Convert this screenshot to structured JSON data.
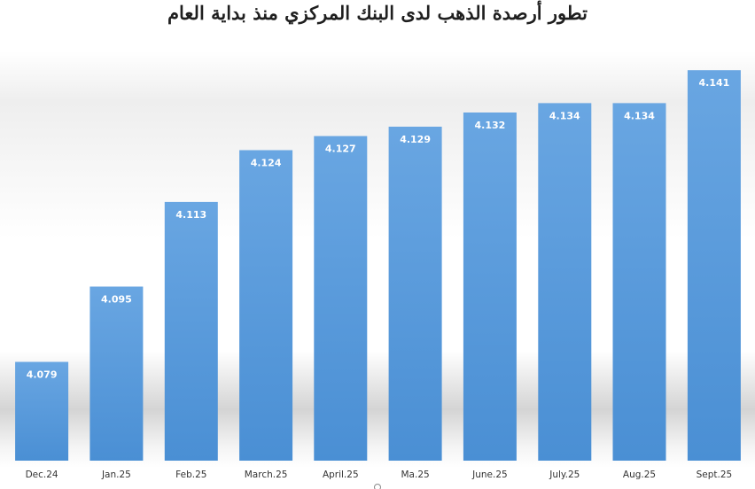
{
  "chart_data": {
    "type": "bar",
    "title": "تطور أرصدة الذهب لدى البنك المركزي منذ بداية العام",
    "xlabel": "",
    "ylabel": "",
    "categories": [
      "Dec.24",
      "Jan.25",
      "Feb.25",
      "March.25",
      "April.25",
      "Ma.25",
      "June.25",
      "July.25",
      "Aug.25",
      "Sept.25"
    ],
    "values": [
      4.079,
      4.095,
      4.113,
      4.124,
      4.127,
      4.129,
      4.132,
      4.134,
      4.134,
      4.141
    ],
    "value_labels": [
      "4.079",
      "4.095",
      "4.113",
      "4.124",
      "4.127",
      "4.129",
      "4.132",
      "4.134",
      "4.134",
      "4.141"
    ],
    "ylim": [
      4.058,
      4.145
    ],
    "grid": false,
    "legend": "none",
    "bar_color": "#4a8fd4",
    "bar_color_light": "#69a6e2"
  }
}
